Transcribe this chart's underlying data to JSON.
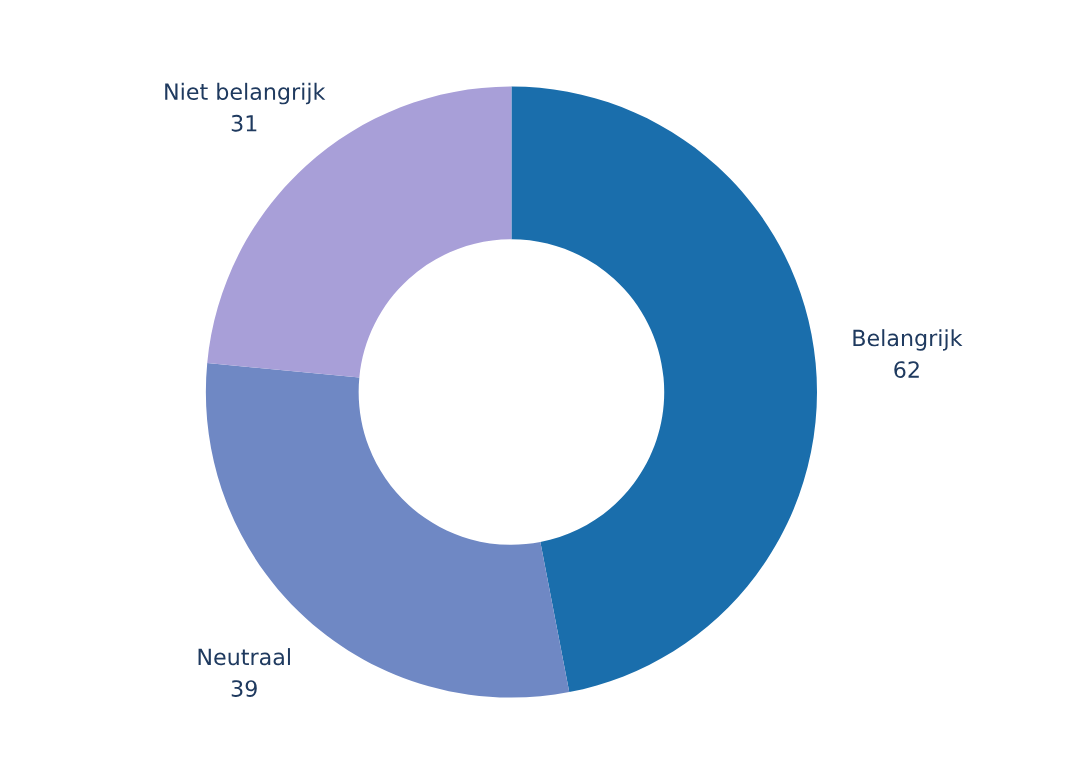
{
  "chart_data": {
    "type": "donut",
    "categories": [
      "Belangrijk",
      "Neutraal",
      "Niet belangrijk"
    ],
    "values": [
      62,
      39,
      31
    ],
    "colors": [
      "#1a6eac",
      "#6f88c4",
      "#a89fd8"
    ],
    "data_labels": true,
    "legend": false
  }
}
